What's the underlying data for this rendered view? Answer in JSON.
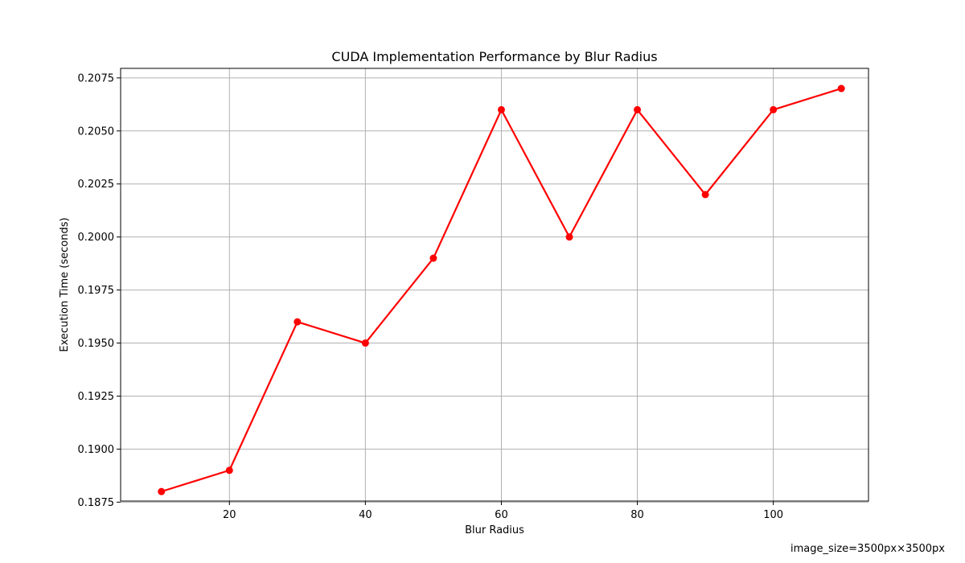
{
  "chart_data": {
    "type": "line",
    "title": "CUDA Implementation Performance by Blur Radius",
    "xlabel": "Blur Radius",
    "ylabel": "Execution Time (seconds)",
    "x": [
      10,
      20,
      30,
      40,
      50,
      60,
      70,
      80,
      90,
      100,
      110
    ],
    "series": [
      {
        "values": [
          0.188,
          0.189,
          0.196,
          0.195,
          0.199,
          0.206,
          0.2,
          0.206,
          0.202,
          0.206,
          0.207
        ]
      }
    ],
    "xlim": [
      4,
      114
    ],
    "ylim": [
      0.18755,
      0.20795
    ],
    "xticks": [
      20,
      40,
      60,
      80,
      100
    ],
    "yticks": [
      0.1875,
      0.19,
      0.1925,
      0.195,
      0.1975,
      0.2,
      0.2025,
      0.205,
      0.2075
    ],
    "ytick_labels": [
      "0.1875",
      "0.1900",
      "0.1925",
      "0.1950",
      "0.1975",
      "0.2000",
      "0.2025",
      "0.2050",
      "0.2075"
    ],
    "grid": true,
    "line_color": "#ff0000",
    "marker": "circle"
  },
  "footnote": "image_size=3500px×3500px"
}
